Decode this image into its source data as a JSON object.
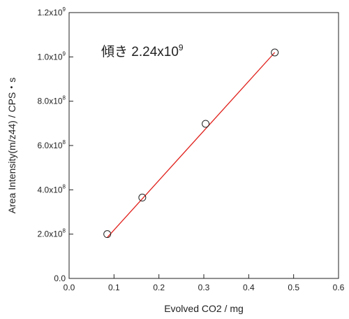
{
  "chart_data": {
    "type": "scatter",
    "xlabel": "Evolved CO2 / mg",
    "ylabel": "Area Intensity(m/z44) / CPS・s",
    "xlim": [
      0.0,
      0.6
    ],
    "ylim": [
      0,
      1200000000
    ],
    "x_ticks": [
      {
        "value": 0.0,
        "label": "0.0"
      },
      {
        "value": 0.1,
        "label": "0.1"
      },
      {
        "value": 0.2,
        "label": "0.2"
      },
      {
        "value": 0.3,
        "label": "0.3"
      },
      {
        "value": 0.4,
        "label": "0.4"
      },
      {
        "value": 0.5,
        "label": "0.5"
      },
      {
        "value": 0.6,
        "label": "0.6"
      }
    ],
    "y_ticks": [
      {
        "value": 0,
        "label": "0.0",
        "exp": ""
      },
      {
        "value": 200000000,
        "label": "2.0x10",
        "exp": "8"
      },
      {
        "value": 400000000,
        "label": "4.0x10",
        "exp": "8"
      },
      {
        "value": 600000000,
        "label": "6.0x10",
        "exp": "8"
      },
      {
        "value": 800000000,
        "label": "8.0x10",
        "exp": "8"
      },
      {
        "value": 1000000000,
        "label": "1.0x10",
        "exp": "9"
      },
      {
        "value": 1200000000,
        "label": "1.2x10",
        "exp": "9"
      }
    ],
    "series": [
      {
        "x": [
          0.085,
          0.163,
          0.304,
          0.458
        ],
        "y": [
          200000000,
          365000000,
          698000000,
          1020000000
        ],
        "marker": "open-circle",
        "color": "#222222"
      }
    ],
    "fit_line": {
      "x": [
        0.085,
        0.458
      ],
      "y": [
        185000000,
        1020000000
      ],
      "color": "#e0201b"
    },
    "annotation": {
      "text": "傾き 2.24x10",
      "exp": "9"
    },
    "grid": false
  }
}
